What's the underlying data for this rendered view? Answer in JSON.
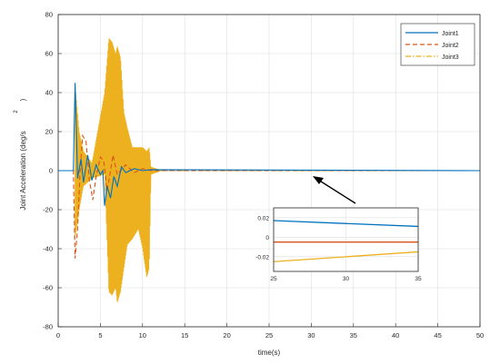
{
  "chart_data": {
    "type": "line",
    "xlabel": "time(s)",
    "ylabel": "Joint Acceleration (deg/s",
    "ylabel_sup": "2",
    "ylabel_close": ")",
    "xlim": [
      0,
      50
    ],
    "ylim": [
      -80,
      80
    ],
    "x_ticks": [
      "0",
      "5",
      "10",
      "15",
      "20",
      "25",
      "30",
      "35",
      "40",
      "45",
      "50"
    ],
    "y_ticks": [
      "-80",
      "-60",
      "-40",
      "-20",
      "0",
      "20",
      "40",
      "60",
      "80"
    ],
    "grid": true,
    "legend_position": "top-right",
    "series": [
      {
        "name": "Joint1",
        "color": "#0072bd",
        "dash": "solid",
        "points": [
          [
            0,
            0
          ],
          [
            1.8,
            0
          ],
          [
            2.0,
            45
          ],
          [
            2.3,
            -4
          ],
          [
            2.7,
            6
          ],
          [
            3.0,
            -6
          ],
          [
            3.5,
            8
          ],
          [
            4.0,
            -5
          ],
          [
            4.5,
            3
          ],
          [
            5.0,
            -2
          ],
          [
            5.3,
            0
          ],
          [
            5.5,
            -18
          ],
          [
            5.8,
            -8
          ],
          [
            6.2,
            -14
          ],
          [
            6.6,
            -3
          ],
          [
            7.0,
            -8
          ],
          [
            7.5,
            2
          ],
          [
            8.0,
            -1
          ],
          [
            9.0,
            1
          ],
          [
            10.0,
            0
          ],
          [
            11.0,
            0.5
          ],
          [
            50,
            0
          ]
        ]
      },
      {
        "name": "Joint2",
        "color": "#d95319",
        "dash": "dashed",
        "points": [
          [
            0,
            0
          ],
          [
            1.8,
            0
          ],
          [
            2.0,
            -45
          ],
          [
            2.3,
            -30
          ],
          [
            2.6,
            0
          ],
          [
            2.9,
            18
          ],
          [
            3.3,
            15
          ],
          [
            3.7,
            -5
          ],
          [
            4.1,
            -15
          ],
          [
            4.5,
            -3
          ],
          [
            5.0,
            7
          ],
          [
            5.4,
            5
          ],
          [
            5.8,
            -10
          ],
          [
            6.1,
            -3
          ],
          [
            6.5,
            8
          ],
          [
            7.0,
            -2
          ],
          [
            8.0,
            3
          ],
          [
            9.0,
            -1
          ],
          [
            10.0,
            1
          ],
          [
            11.0,
            0
          ],
          [
            50,
            0
          ]
        ]
      },
      {
        "name": "Joint3",
        "color": "#edb120",
        "dash": "dashdot",
        "envelope": [
          [
            2.0,
            -35,
            45
          ],
          [
            2.5,
            -20,
            20
          ],
          [
            3.0,
            -8,
            10
          ],
          [
            4.0,
            -4,
            4
          ],
          [
            5.5,
            -2,
            40
          ],
          [
            6.0,
            -62,
            68
          ],
          [
            6.4,
            -64,
            66
          ],
          [
            6.8,
            -60,
            60
          ],
          [
            7.0,
            -68,
            64
          ],
          [
            7.4,
            -62,
            58
          ],
          [
            7.8,
            -50,
            30
          ],
          [
            8.2,
            -38,
            22
          ],
          [
            8.8,
            -35,
            12
          ],
          [
            9.5,
            -30,
            12
          ],
          [
            10.0,
            -40,
            12
          ],
          [
            10.5,
            -55,
            10
          ],
          [
            10.8,
            -50,
            12
          ],
          [
            11.0,
            -2,
            2
          ],
          [
            12.0,
            -0.5,
            0.5
          ]
        ],
        "steady_value": 0
      }
    ],
    "inset": {
      "xlim": [
        25,
        35
      ],
      "ylim": [
        -0.035,
        0.03
      ],
      "x_ticks": [
        "25",
        "30",
        "35"
      ],
      "y_ticks": [
        "0.02",
        "0",
        "-0.02"
      ],
      "series": [
        {
          "name": "Joint1",
          "color": "#0072bd",
          "points": [
            [
              25,
              0.017
            ],
            [
              35,
              0.011
            ]
          ]
        },
        {
          "name": "Joint2",
          "color": "#d95319",
          "points": [
            [
              25,
              -0.005
            ],
            [
              35,
              -0.005
            ]
          ]
        },
        {
          "name": "Joint3",
          "color": "#edb120",
          "points": [
            [
              25,
              -0.025
            ],
            [
              35,
              -0.015
            ]
          ]
        }
      ]
    }
  }
}
